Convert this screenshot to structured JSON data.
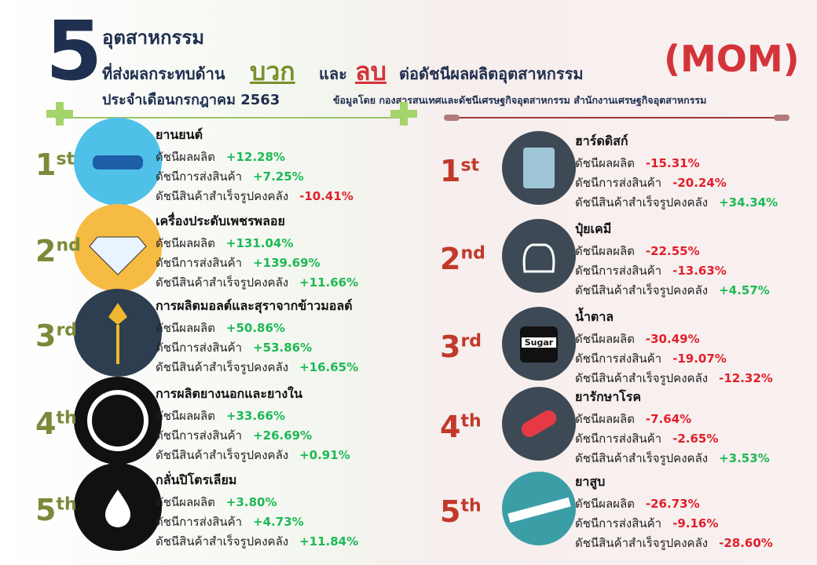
{
  "header": {
    "number": "5",
    "line1": "อุตสาหกรรม",
    "line2_pre": "ที่ส่งผลกระทบด้าน",
    "positive_word": "บวก",
    "and_word": "และ",
    "negative_word": "ลบ",
    "line2_post": "ต่อดัชนีผลผลิตอุตสาหกรรม",
    "line3": "ประจำเดือนกรกฎาคม  2563",
    "mom": "(MOM)",
    "source": "ข้อมูลโดย  กองสารสนเทศและดัชนีเศรษฐกิจอุตสาหกรรม สำนักงานเศรษฐกิจอุตสาหกรรม"
  },
  "metric_labels": [
    "ดัชนีผลผลิต",
    "ดัชนีการส่งสินค้า",
    "ดัชนีสินค้าสำเร็จรูปคงคลัง"
  ],
  "positive": {
    "items": [
      {
        "rank": "1",
        "suffix": "st",
        "name": "ยานยนต์",
        "values": [
          "+12.28%",
          "+7.25%",
          "-10.41%"
        ]
      },
      {
        "rank": "2",
        "suffix": "nd",
        "name": "เครื่องประดับเพชรพลอย",
        "values": [
          "+131.04%",
          "+139.69%",
          "+11.66%"
        ]
      },
      {
        "rank": "3",
        "suffix": "rd",
        "name": "การผลิตมอลต์และสุราจากข้าวมอลต์",
        "values": [
          "+50.86%",
          "+53.86%",
          "+16.65%"
        ]
      },
      {
        "rank": "4",
        "suffix": "th",
        "name": "การผลิตยางนอกและยางใน",
        "values": [
          "+33.66%",
          "+26.69%",
          "+0.91%"
        ]
      },
      {
        "rank": "5",
        "suffix": "th",
        "name": "กลั่นปิโตรเลียม",
        "values": [
          "+3.80%",
          "+4.73%",
          "+11.84%"
        ]
      }
    ]
  },
  "negative": {
    "items": [
      {
        "rank": "1",
        "suffix": "st",
        "name": "ฮาร์ดดิสก์",
        "values": [
          "-15.31%",
          "-20.24%",
          "+34.34%"
        ]
      },
      {
        "rank": "2",
        "suffix": "nd",
        "name": "ปุ๋ยเคมี",
        "values": [
          "-22.55%",
          "-13.63%",
          "+4.57%"
        ]
      },
      {
        "rank": "3",
        "suffix": "rd",
        "name": "น้ำตาล",
        "values": [
          "-30.49%",
          "-19.07%",
          "-12.32%"
        ],
        "icon_label": "Sugar"
      },
      {
        "rank": "4",
        "suffix": "th",
        "name": "ยารักษาโรค",
        "values": [
          "-7.64%",
          "-2.65%",
          "+3.53%"
        ]
      },
      {
        "rank": "5",
        "suffix": "th",
        "name": "ยาสูบ",
        "values": [
          "-26.73%",
          "-9.16%",
          "-28.60%"
        ]
      }
    ]
  }
}
